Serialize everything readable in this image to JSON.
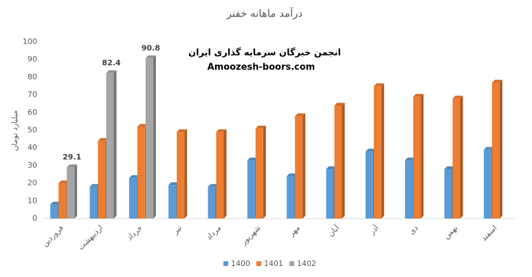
{
  "chart_data": {
    "type": "bar",
    "title": "درآمد ماهانه خفنر",
    "y_label": "میلیارد تومان",
    "annotations": [
      "انجمن خبرگان سرمایه گذاری ایران",
      "Amoozesh-boors.com"
    ],
    "categories": [
      "فروردین",
      "اردیبهشت",
      "خرداد",
      "تیر",
      "مرداد",
      "شهریور",
      "مهر",
      "آبان",
      "آذر",
      "دی",
      "بهمن",
      "اسفند"
    ],
    "series": [
      {
        "name": "1400",
        "color": "#5b9bd5",
        "values": [
          8,
          18,
          23,
          19,
          18,
          33,
          24,
          28,
          38,
          33,
          28,
          39
        ]
      },
      {
        "name": "1401",
        "color": "#ed7d31",
        "values": [
          20,
          44,
          52,
          49,
          49,
          51,
          58,
          64,
          75,
          69,
          68,
          77
        ]
      },
      {
        "name": "1402",
        "color": "#a5a5a5",
        "values": [
          29.1,
          82.4,
          90.8,
          null,
          null,
          null,
          null,
          null,
          null,
          null,
          null,
          null
        ],
        "labels": true
      }
    ],
    "ylim": [
      0,
      100
    ],
    "yticks": [
      0,
      10,
      20,
      30,
      40,
      50,
      60,
      70,
      80,
      90,
      100
    ],
    "grid": false,
    "legend": "bottom"
  }
}
